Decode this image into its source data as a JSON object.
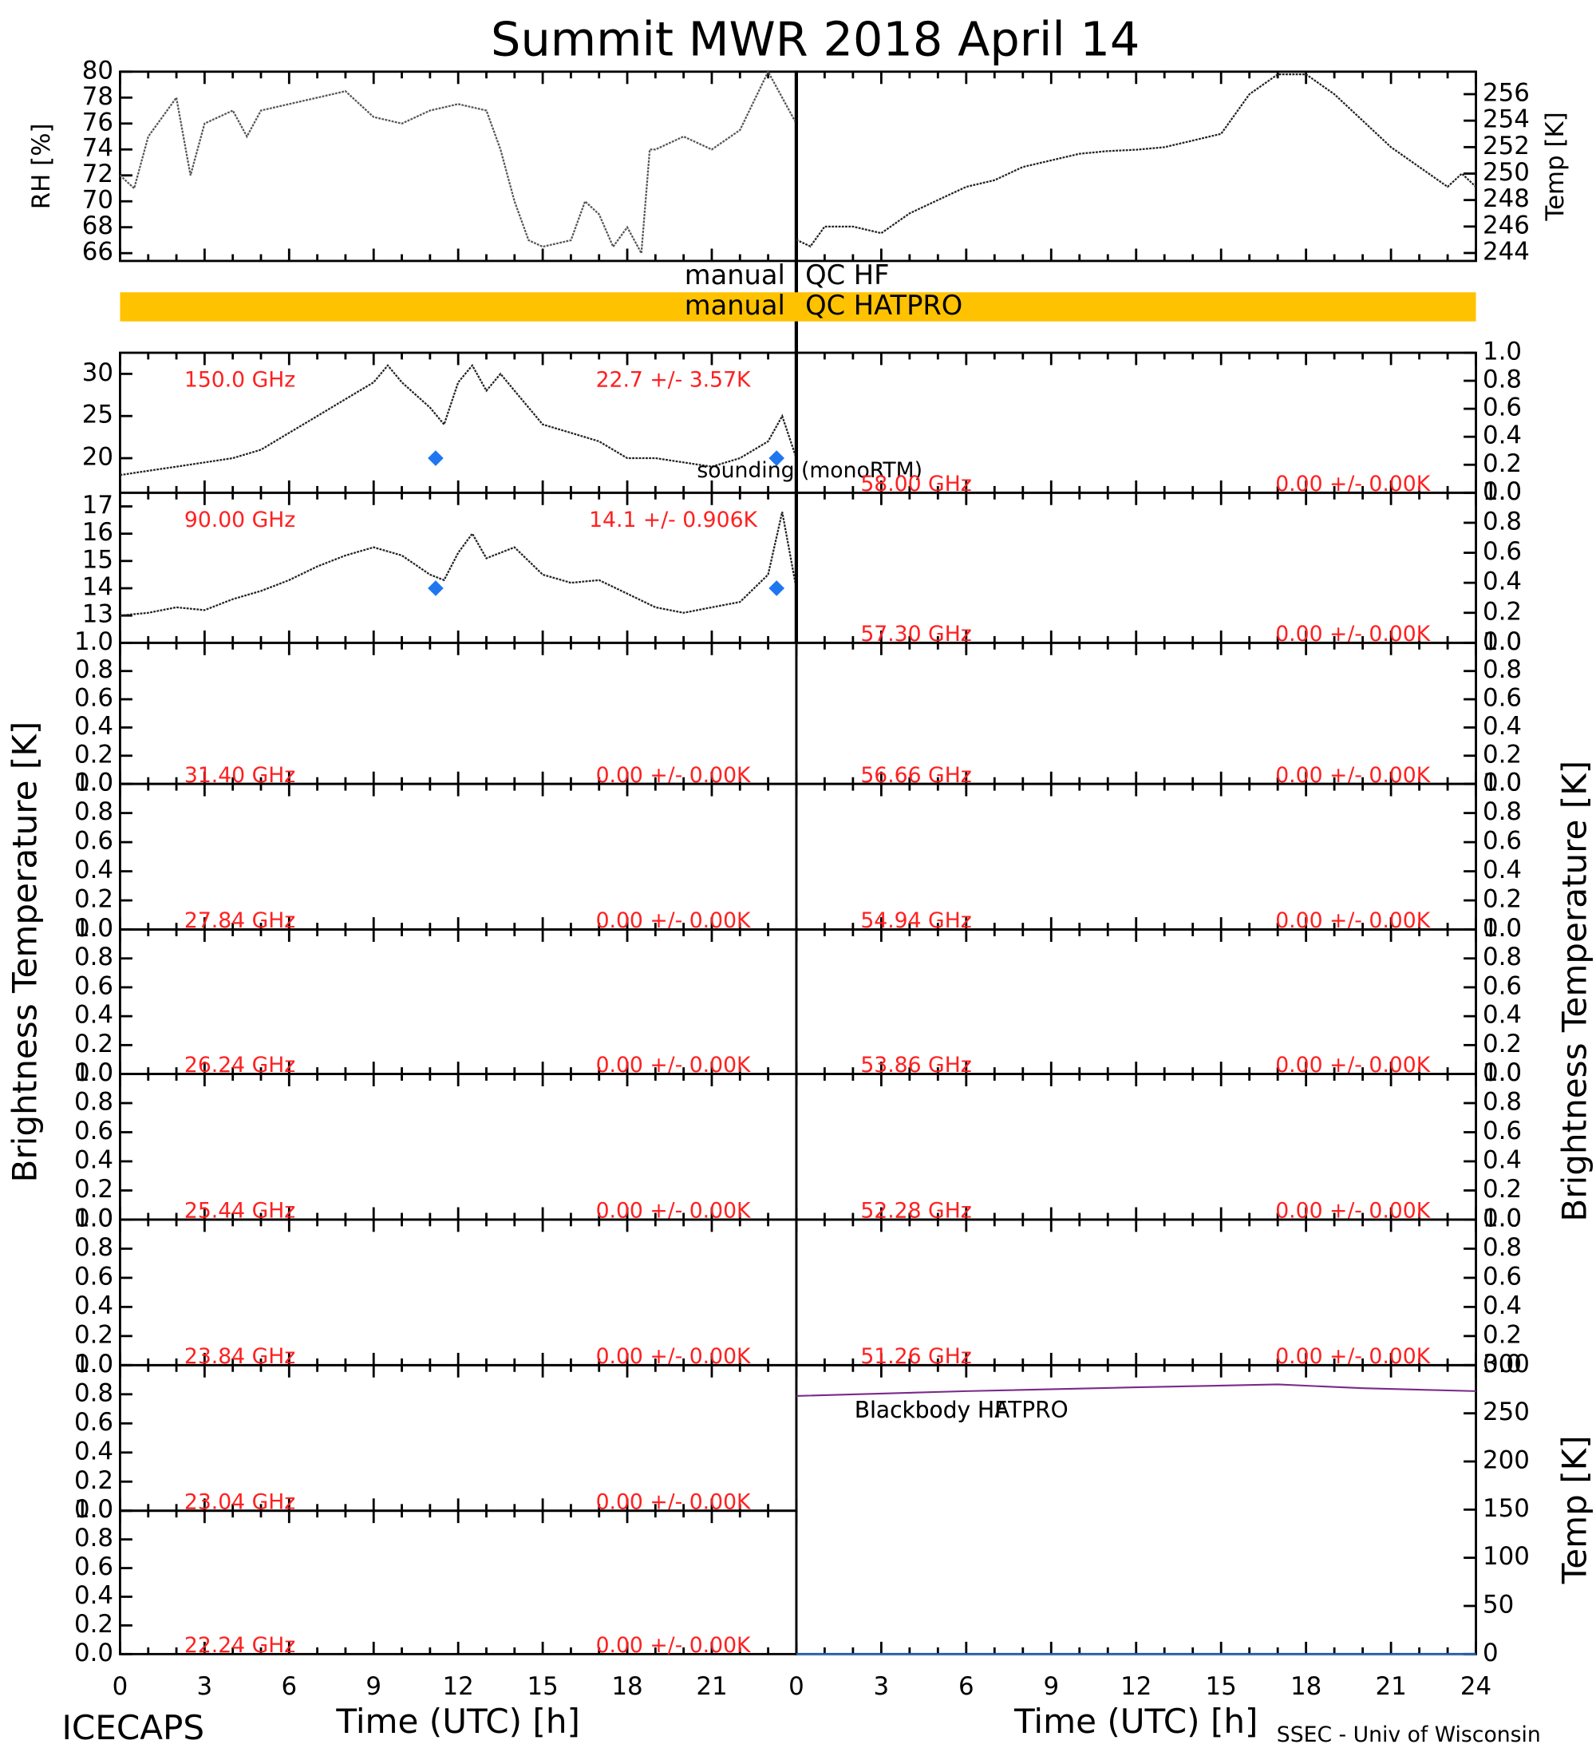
{
  "title": "Summit MWR 2018 April 14",
  "ylabel": "Brightness Temperature [K]",
  "credit_left": "ICECAPS",
  "credit_right": "SSEC - Univ of Wisconsin",
  "qc": [
    {
      "left": "manual",
      "right": "QC HF"
    },
    {
      "left": "manual",
      "right": "QC HATPRO",
      "color": "#ffc200"
    }
  ],
  "chart_data": [
    {
      "type": "line",
      "ylabel": "RH [%]",
      "xlim": [
        0,
        24
      ],
      "ylim": [
        65.4,
        80
      ],
      "yticks": [
        66,
        68,
        70,
        72,
        74,
        76,
        78,
        80
      ],
      "series": [
        {
          "color": "#555555",
          "x": [
            0,
            0.5,
            1,
            2,
            2.5,
            3,
            4,
            4.5,
            5,
            6,
            7,
            8,
            9,
            10,
            11,
            12,
            13,
            13.5,
            14,
            14.5,
            15,
            16,
            16.5,
            17,
            17.5,
            18,
            18.5,
            18.8,
            19,
            20,
            21,
            22,
            23,
            23.5,
            24
          ],
          "values": [
            72,
            71,
            75,
            78,
            72,
            76,
            77,
            75,
            77,
            77.5,
            78,
            78.5,
            76.5,
            76,
            77,
            77.5,
            77,
            74,
            70,
            67,
            66.5,
            67,
            70,
            69,
            66.5,
            68,
            66,
            74,
            74,
            75,
            74,
            75.5,
            80,
            78,
            76
          ]
        }
      ]
    },
    {
      "type": "line",
      "ylabel": "Temp [K]",
      "xlim": [
        0,
        24
      ],
      "ylim": [
        243.4,
        257.7
      ],
      "yticks": [
        244,
        246,
        248,
        250,
        252,
        254,
        256
      ],
      "series": [
        {
          "color": "#222222",
          "x": [
            0,
            0.5,
            1,
            2,
            3,
            4,
            5,
            6,
            7,
            8,
            9,
            10,
            11,
            12,
            13,
            14,
            15,
            16,
            17,
            18,
            19,
            20,
            21,
            22,
            23,
            23.5,
            24
          ],
          "values": [
            245,
            244.5,
            246,
            246,
            245.5,
            247,
            248,
            249,
            249.5,
            250.5,
            251,
            251.5,
            251.7,
            251.8,
            252,
            252.5,
            253,
            256,
            257.5,
            257.5,
            256,
            254,
            252,
            250.5,
            249,
            250,
            249
          ]
        }
      ]
    },
    {
      "type": "line",
      "xlim": [
        0,
        24
      ],
      "ylim": [
        15.9,
        32.5
      ],
      "yticks": [
        20,
        25,
        30
      ],
      "annotations": [
        "150.0 GHz",
        "22.7 +/-  3.57K"
      ],
      "series": [
        {
          "color": "#222222",
          "x": [
            0,
            1,
            2,
            3,
            4,
            5,
            6,
            7,
            8,
            9,
            9.5,
            10,
            11,
            11.5,
            12,
            12.5,
            13,
            13.5,
            14,
            15,
            16,
            17,
            18,
            19,
            20,
            21,
            22,
            23,
            23.5,
            24
          ],
          "values": [
            18,
            18.5,
            19,
            19.5,
            20,
            21,
            23,
            25,
            27,
            29,
            31,
            29,
            26,
            24,
            29,
            31,
            28,
            30,
            28,
            24,
            23,
            22,
            20,
            20,
            19.5,
            19,
            20,
            22,
            25,
            20
          ]
        }
      ],
      "markers": {
        "name": "sounding (monoRTM)",
        "color": "#1f77f0",
        "x": [
          11.2,
          23.3
        ],
        "values": [
          20,
          20
        ]
      }
    },
    {
      "type": "line",
      "xlim": [
        0,
        24
      ],
      "ylim": [
        12,
        17.5
      ],
      "yticks": [
        13,
        14,
        15,
        16,
        17
      ],
      "annotations": [
        "90.00 GHz",
        "14.1 +/- 0.906K"
      ],
      "series": [
        {
          "color": "#222222",
          "x": [
            0,
            1,
            2,
            3,
            4,
            5,
            6,
            7,
            8,
            9,
            10,
            11,
            11.5,
            12,
            12.5,
            13,
            14,
            15,
            16,
            17,
            18,
            19,
            20,
            21,
            22,
            23,
            23.5,
            24
          ],
          "values": [
            13,
            13.1,
            13.3,
            13.2,
            13.6,
            13.9,
            14.3,
            14.8,
            15.2,
            15.5,
            15.2,
            14.5,
            14.3,
            15.3,
            16,
            15.1,
            15.5,
            14.5,
            14.2,
            14.3,
            13.8,
            13.3,
            13.1,
            13.3,
            13.5,
            14.5,
            16.8,
            14
          ]
        }
      ],
      "markers": {
        "color": "#1f77f0",
        "x": [
          11.2,
          23.3
        ],
        "values": [
          14,
          14
        ]
      }
    },
    {
      "type": "line",
      "xlim": [
        0,
        24
      ],
      "ylim": [
        0,
        1
      ],
      "yticks": [
        {
          "value": 0,
          "label": "0.0"
        },
        0.2,
        0.4,
        0.6,
        0.8,
        {
          "value": 1,
          "label": "1.0"
        }
      ],
      "annotations": [
        "31.40 GHz",
        "0.00 +/-  0.00K"
      ],
      "series": []
    },
    {
      "type": "line",
      "xlim": [
        0,
        24
      ],
      "ylim": [
        0,
        1
      ],
      "yticks": [
        {
          "value": 0,
          "label": "0.0"
        },
        0.2,
        0.4,
        0.6,
        0.8,
        {
          "value": 1,
          "label": "1.0"
        }
      ],
      "annotations": [
        "27.84 GHz",
        "0.00 +/-  0.00K"
      ],
      "series": []
    },
    {
      "type": "line",
      "xlim": [
        0,
        24
      ],
      "ylim": [
        0,
        1
      ],
      "yticks": [
        {
          "value": 0,
          "label": "0.0"
        },
        0.2,
        0.4,
        0.6,
        0.8,
        {
          "value": 1,
          "label": "1.0"
        }
      ],
      "annotations": [
        "26.24 GHz",
        "0.00 +/-  0.00K"
      ],
      "series": []
    },
    {
      "type": "line",
      "xlim": [
        0,
        24
      ],
      "ylim": [
        0,
        1
      ],
      "yticks": [
        {
          "value": 0,
          "label": "0.0"
        },
        0.2,
        0.4,
        0.6,
        0.8,
        {
          "value": 1,
          "label": "1.0"
        }
      ],
      "annotations": [
        "25.44 GHz",
        "0.00 +/-  0.00K"
      ],
      "series": []
    },
    {
      "type": "line",
      "xlim": [
        0,
        24
      ],
      "ylim": [
        0,
        1
      ],
      "yticks": [
        {
          "value": 0,
          "label": "0.0"
        },
        0.2,
        0.4,
        0.6,
        0.8,
        {
          "value": 1,
          "label": "1.0"
        }
      ],
      "annotations": [
        "23.84 GHz",
        "0.00 +/-  0.00K"
      ],
      "series": []
    },
    {
      "type": "line",
      "xlim": [
        0,
        24
      ],
      "ylim": [
        0,
        1
      ],
      "yticks": [
        {
          "value": 0,
          "label": "0.0"
        },
        0.2,
        0.4,
        0.6,
        0.8,
        {
          "value": 1,
          "label": "1.0"
        }
      ],
      "annotations": [
        "23.04 GHz",
        "0.00 +/-  0.00K"
      ],
      "series": []
    },
    {
      "type": "line",
      "xlim": [
        0,
        24
      ],
      "ylim": [
        0,
        1
      ],
      "yticks": [
        {
          "value": 0,
          "label": "0.0"
        },
        0.2,
        0.4,
        0.6,
        0.8,
        {
          "value": 1,
          "label": "1.0"
        }
      ],
      "annotations": [
        "22.24 GHz",
        "0.00 +/-  0.00K"
      ],
      "series": [],
      "xlabel": "Time (UTC) [h]",
      "xticks": [
        0,
        3,
        6,
        9,
        12,
        15,
        18,
        21
      ]
    },
    {
      "type": "line",
      "xlim": [
        0,
        24
      ],
      "ylim": [
        0,
        1
      ],
      "yticks": [
        {
          "value": 0,
          "label": "0.0"
        },
        0.2,
        0.4,
        0.6,
        0.8,
        {
          "value": 1,
          "label": "1.0"
        }
      ],
      "annotations": [
        "58.00 GHz",
        "0.00 +/-  0.00K"
      ],
      "series": []
    },
    {
      "type": "line",
      "xlim": [
        0,
        24
      ],
      "ylim": [
        0,
        1
      ],
      "yticks": [
        {
          "value": 0,
          "label": "0.0"
        },
        0.2,
        0.4,
        0.6,
        0.8,
        {
          "value": 1,
          "label": "1.0"
        }
      ],
      "annotations": [
        "57.30 GHz",
        "0.00 +/-  0.00K"
      ],
      "series": []
    },
    {
      "type": "line",
      "xlim": [
        0,
        24
      ],
      "ylim": [
        0,
        1
      ],
      "yticks": [
        {
          "value": 0,
          "label": "0.0"
        },
        0.2,
        0.4,
        0.6,
        0.8,
        {
          "value": 1,
          "label": "1.0"
        }
      ],
      "annotations": [
        "56.66 GHz",
        "0.00 +/-  0.00K"
      ],
      "series": []
    },
    {
      "type": "line",
      "xlim": [
        0,
        24
      ],
      "ylim": [
        0,
        1
      ],
      "yticks": [
        {
          "value": 0,
          "label": "0.0"
        },
        0.2,
        0.4,
        0.6,
        0.8,
        {
          "value": 1,
          "label": "1.0"
        }
      ],
      "annotations": [
        "54.94 GHz",
        "0.00 +/-  0.00K"
      ],
      "series": []
    },
    {
      "type": "line",
      "xlim": [
        0,
        24
      ],
      "ylim": [
        0,
        1
      ],
      "yticks": [
        {
          "value": 0,
          "label": "0.0"
        },
        0.2,
        0.4,
        0.6,
        0.8,
        {
          "value": 1,
          "label": "1.0"
        }
      ],
      "annotations": [
        "53.86 GHz",
        "0.00 +/-  0.00K"
      ],
      "series": []
    },
    {
      "type": "line",
      "xlim": [
        0,
        24
      ],
      "ylim": [
        0,
        1
      ],
      "yticks": [
        {
          "value": 0,
          "label": "0.0"
        },
        0.2,
        0.4,
        0.6,
        0.8,
        {
          "value": 1,
          "label": "1.0"
        }
      ],
      "annotations": [
        "52.28 GHz",
        "0.00 +/-  0.00K"
      ],
      "series": []
    },
    {
      "type": "line",
      "xlim": [
        0,
        24
      ],
      "ylim": [
        0,
        1
      ],
      "yticks": [
        {
          "value": 0,
          "label": "0.0"
        },
        0.2,
        0.4,
        0.6,
        0.8,
        {
          "value": 1,
          "label": "1.0"
        }
      ],
      "annotations": [
        "51.26 GHz",
        "0.00 +/-  0.00K"
      ],
      "series": []
    },
    {
      "type": "line",
      "xlim": [
        0,
        24
      ],
      "ylim": [
        0,
        300
      ],
      "yticks": [
        0,
        50,
        100,
        150,
        200,
        250,
        300
      ],
      "ylabel": "Temp [K]",
      "xlabel": "Time (UTC) [h]",
      "xticks": [
        0,
        3,
        6,
        9,
        12,
        15,
        18,
        21,
        24
      ],
      "series": [
        {
          "name": "Blackbody HATPRO",
          "color": "#1f6fe0",
          "x": [
            0,
            24
          ],
          "values": [
            0,
            0
          ]
        },
        {
          "name": "Blackbody HF",
          "color": "#7a2a8a",
          "x": [
            0,
            6,
            12,
            17,
            20,
            24
          ],
          "values": [
            268,
            273,
            277,
            280,
            276,
            273
          ]
        }
      ]
    }
  ]
}
